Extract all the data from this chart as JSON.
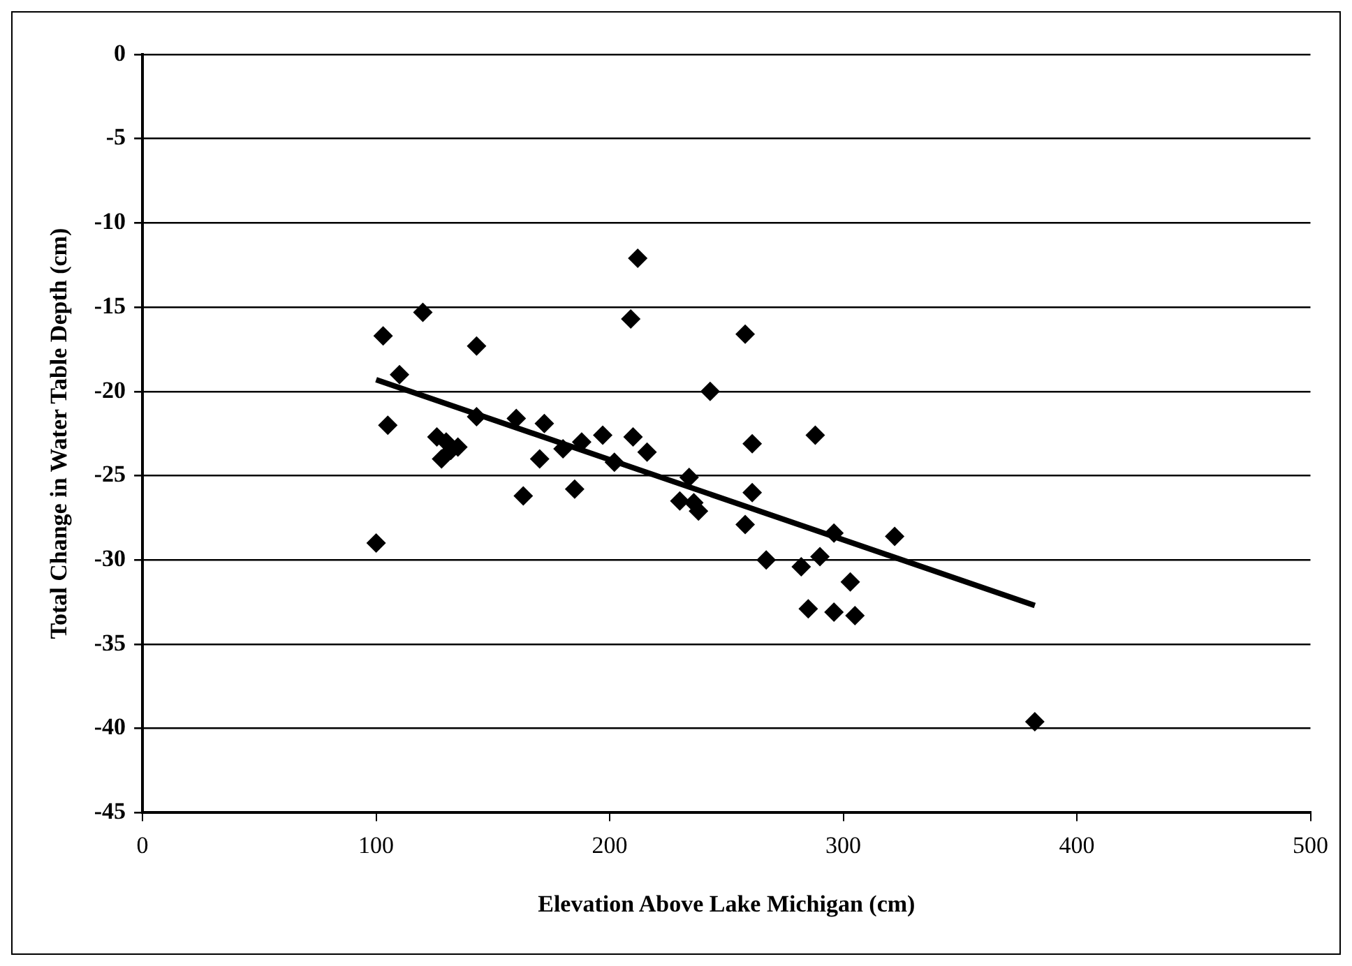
{
  "chart_data": {
    "type": "scatter",
    "xlabel": "Elevation Above Lake Michigan (cm)",
    "ylabel": "Total Change in Water Table Depth (cm)",
    "xlim": [
      0,
      500
    ],
    "xticks": [
      0,
      100,
      200,
      300,
      400,
      500
    ],
    "ylim": [
      -45,
      0
    ],
    "yticks": [
      -45,
      -40,
      -35,
      -30,
      -25,
      -20,
      -15,
      -10,
      -5,
      0
    ],
    "grid": "y",
    "legend": false,
    "marker": "diamond",
    "series": [
      {
        "color": "#000000",
        "x": [
          103,
          105,
          110,
          100,
          120,
          126,
          128,
          130,
          132,
          135,
          143,
          143,
          160,
          163,
          170,
          172,
          180,
          185,
          188,
          197,
          202,
          209,
          212,
          210,
          216,
          230,
          234,
          236,
          238,
          243,
          258,
          258,
          261,
          261,
          267,
          282,
          285,
          288,
          290,
          296,
          296,
          303,
          305,
          322,
          382
        ],
        "values": [
          -16.7,
          -22,
          -19,
          -29,
          -15.3,
          -22.7,
          -24,
          -23,
          -23.5,
          -23.3,
          -17.3,
          -21.5,
          -21.6,
          -26.2,
          -24,
          -21.9,
          -23.4,
          -25.8,
          -23,
          -22.6,
          -24.2,
          -15.7,
          -12.1,
          -22.7,
          -23.6,
          -26.5,
          -25.1,
          -26.6,
          -27.1,
          -20,
          -16.6,
          -27.9,
          -23.1,
          -26,
          -30,
          -30.4,
          -32.9,
          -22.6,
          -29.8,
          -28.4,
          -33.1,
          -31.3,
          -33.3,
          -28.6,
          -39.6
        ]
      },
      {
        "type": "line",
        "color": "#000000",
        "marker": "none",
        "line_style": "solid",
        "x": [
          100,
          382
        ],
        "values": [
          -19.3,
          -32.7
        ]
      }
    ]
  }
}
